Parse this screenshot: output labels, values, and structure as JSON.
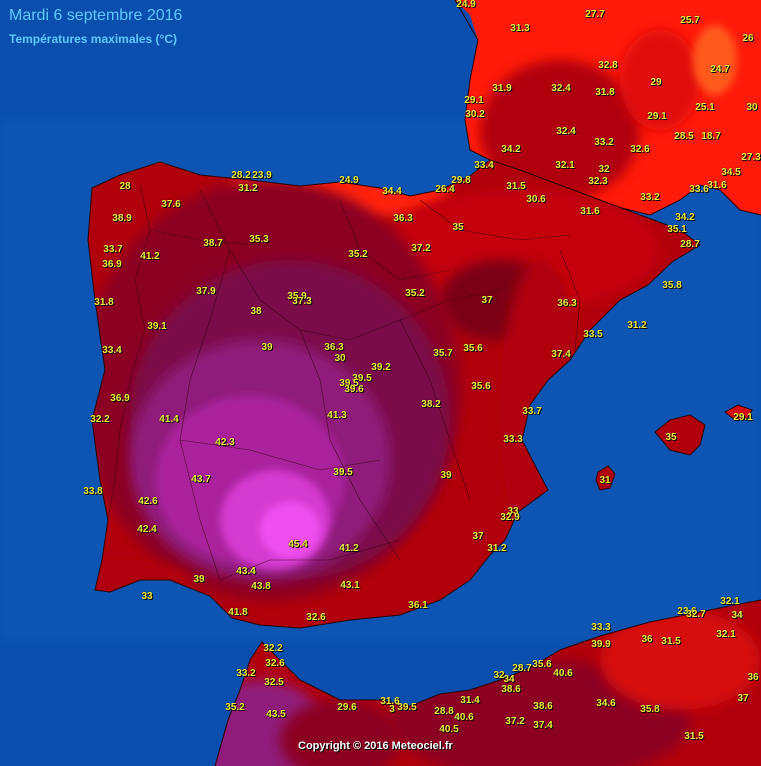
{
  "header": {
    "title": "Mardi 6 septembre 2016",
    "subtitle": "Températures maximales (°C)"
  },
  "footer": {
    "copyright": "Copyright © 2016 Meteociel.fr"
  },
  "colors": {
    "sea": "#0b4fae",
    "temp_28_30": "#ff1a0a",
    "temp_30_33": "#d60b10",
    "temp_33_36": "#b0000c",
    "temp_36_39": "#8b0020",
    "temp_39_41": "#7a0a4a",
    "temp_41_43": "#8f1a7a",
    "temp_43_45": "#c02ac0",
    "temp_45_plus": "#f050f0",
    "label": "#f2f23c"
  },
  "temperatures": [
    {
      "id": "t1",
      "value": "24.9"
    },
    {
      "id": "t2",
      "value": "31.3"
    },
    {
      "id": "t3",
      "value": "27.7"
    },
    {
      "id": "t4",
      "value": "25.7"
    },
    {
      "id": "t5",
      "value": "26"
    },
    {
      "id": "t6",
      "value": "32.8"
    },
    {
      "id": "t7",
      "value": "24.7"
    },
    {
      "id": "t8",
      "value": "29"
    },
    {
      "id": "t9",
      "value": "32.4"
    },
    {
      "id": "t10",
      "value": "31.8"
    },
    {
      "id": "t11",
      "value": "31.9"
    },
    {
      "id": "t12",
      "value": "29.1"
    },
    {
      "id": "t13",
      "value": "30.2"
    },
    {
      "id": "t14",
      "value": "25.1"
    },
    {
      "id": "t15",
      "value": "30"
    },
    {
      "id": "t16",
      "value": "29.1"
    },
    {
      "id": "t17",
      "value": "32.4"
    },
    {
      "id": "t18",
      "value": "28.5"
    },
    {
      "id": "t19",
      "value": "18.7"
    },
    {
      "id": "t20",
      "value": "33.2"
    },
    {
      "id": "t21",
      "value": "34.2"
    },
    {
      "id": "t22",
      "value": "32.6"
    },
    {
      "id": "t23",
      "value": "27.3"
    },
    {
      "id": "t24",
      "value": "33.4"
    },
    {
      "id": "t25",
      "value": "32.1"
    },
    {
      "id": "t26",
      "value": "32"
    },
    {
      "id": "t27",
      "value": "34.5"
    },
    {
      "id": "t28",
      "value": "28.2"
    },
    {
      "id": "t29",
      "value": "23.9"
    },
    {
      "id": "t30",
      "value": "24.9"
    },
    {
      "id": "t31",
      "value": "29.8"
    },
    {
      "id": "t32",
      "value": "32.3"
    },
    {
      "id": "t33",
      "value": "31.6"
    },
    {
      "id": "t34",
      "value": "33.6"
    },
    {
      "id": "t35",
      "value": "31.2"
    },
    {
      "id": "t36",
      "value": "34.4"
    },
    {
      "id": "t37",
      "value": "26.4"
    },
    {
      "id": "t38",
      "value": "31.5"
    },
    {
      "id": "t39",
      "value": "28"
    },
    {
      "id": "t40",
      "value": "30.6"
    },
    {
      "id": "t41",
      "value": "33.2"
    },
    {
      "id": "t42",
      "value": "37.6"
    },
    {
      "id": "t43",
      "value": "31.6"
    },
    {
      "id": "t44",
      "value": "38.9"
    },
    {
      "id": "t45",
      "value": "36.3"
    },
    {
      "id": "t46",
      "value": "34.2"
    },
    {
      "id": "t47",
      "value": "35"
    },
    {
      "id": "t48",
      "value": "35.1"
    },
    {
      "id": "t49",
      "value": "33.7"
    },
    {
      "id": "t50",
      "value": "38.7"
    },
    {
      "id": "t51",
      "value": "35.3"
    },
    {
      "id": "t52",
      "value": "37.2"
    },
    {
      "id": "t53",
      "value": "28.7"
    },
    {
      "id": "t54",
      "value": "41.2"
    },
    {
      "id": "t55",
      "value": "35.2"
    },
    {
      "id": "t56",
      "value": "36.9"
    },
    {
      "id": "t57",
      "value": "35.8"
    },
    {
      "id": "t58",
      "value": "37.9"
    },
    {
      "id": "t59",
      "value": "35.2"
    },
    {
      "id": "t60",
      "value": "37"
    },
    {
      "id": "t61",
      "value": "31.8"
    },
    {
      "id": "t62",
      "value": "35.9"
    },
    {
      "id": "t63",
      "value": "37.3"
    },
    {
      "id": "t64",
      "value": "36.3"
    },
    {
      "id": "t65",
      "value": "38"
    },
    {
      "id": "t66",
      "value": "39.1"
    },
    {
      "id": "t67",
      "value": "31.2"
    },
    {
      "id": "t68",
      "value": "33.5"
    },
    {
      "id": "t69",
      "value": "33.4"
    },
    {
      "id": "t70",
      "value": "39"
    },
    {
      "id": "t71",
      "value": "36.3"
    },
    {
      "id": "t72",
      "value": "35.7"
    },
    {
      "id": "t73",
      "value": "35.6"
    },
    {
      "id": "t74",
      "value": "37.4"
    },
    {
      "id": "t75",
      "value": "30"
    },
    {
      "id": "t76",
      "value": "39.2"
    },
    {
      "id": "t77",
      "value": "39.5"
    },
    {
      "id": "t78",
      "value": "39.5"
    },
    {
      "id": "t79",
      "value": "35.6"
    },
    {
      "id": "t80",
      "value": "39.6"
    },
    {
      "id": "t81",
      "value": "36.9"
    },
    {
      "id": "t82",
      "value": "38.2"
    },
    {
      "id": "t83",
      "value": "33.7"
    },
    {
      "id": "t84",
      "value": "29.1"
    },
    {
      "id": "t85",
      "value": "41.4"
    },
    {
      "id": "t86",
      "value": "41.3"
    },
    {
      "id": "t87",
      "value": "32.2"
    },
    {
      "id": "t88",
      "value": "35"
    },
    {
      "id": "t89",
      "value": "42.3"
    },
    {
      "id": "t90",
      "value": "33.3"
    },
    {
      "id": "t91",
      "value": "39.5"
    },
    {
      "id": "t92",
      "value": "39"
    },
    {
      "id": "t93",
      "value": "43.7"
    },
    {
      "id": "t94",
      "value": "31"
    },
    {
      "id": "t95",
      "value": "33.8"
    },
    {
      "id": "t96",
      "value": "42.6"
    },
    {
      "id": "t97",
      "value": "33"
    },
    {
      "id": "t98",
      "value": "32.9"
    },
    {
      "id": "t99",
      "value": "42.4"
    },
    {
      "id": "t100",
      "value": "37"
    },
    {
      "id": "t101",
      "value": "45.4"
    },
    {
      "id": "t102",
      "value": "41.2"
    },
    {
      "id": "t103",
      "value": "31.2"
    },
    {
      "id": "t104",
      "value": "43.4"
    },
    {
      "id": "t105",
      "value": "39"
    },
    {
      "id": "t106",
      "value": "43.8"
    },
    {
      "id": "t107",
      "value": "43.1"
    },
    {
      "id": "t108",
      "value": "33"
    },
    {
      "id": "t109",
      "value": "36.1"
    },
    {
      "id": "t110",
      "value": "32.1"
    },
    {
      "id": "t111",
      "value": "41.8"
    },
    {
      "id": "t112",
      "value": "32.6"
    },
    {
      "id": "t113",
      "value": "23.6"
    },
    {
      "id": "t114",
      "value": "32.7"
    },
    {
      "id": "t115",
      "value": "34"
    },
    {
      "id": "t116",
      "value": "33.3"
    },
    {
      "id": "t117",
      "value": "36"
    },
    {
      "id": "t118",
      "value": "31.5"
    },
    {
      "id": "t119",
      "value": "32.1"
    },
    {
      "id": "t120",
      "value": "32.2"
    },
    {
      "id": "t121",
      "value": "39.9"
    },
    {
      "id": "t122",
      "value": "32.6"
    },
    {
      "id": "t123",
      "value": "28.7"
    },
    {
      "id": "t124",
      "value": "35.6"
    },
    {
      "id": "t125",
      "value": "33.2"
    },
    {
      "id": "t126",
      "value": "32"
    },
    {
      "id": "t127",
      "value": "34"
    },
    {
      "id": "t128",
      "value": "40.6"
    },
    {
      "id": "t129",
      "value": "36"
    },
    {
      "id": "t130",
      "value": "32.5"
    },
    {
      "id": "t131",
      "value": "38.6"
    },
    {
      "id": "t132",
      "value": "37"
    },
    {
      "id": "t133",
      "value": "31.6"
    },
    {
      "id": "t134",
      "value": "31.4"
    },
    {
      "id": "t135",
      "value": "35.2"
    },
    {
      "id": "t136",
      "value": "29.6"
    },
    {
      "id": "t137",
      "value": "39.5"
    },
    {
      "id": "t138",
      "value": "3"
    },
    {
      "id": "t139",
      "value": "28.8"
    },
    {
      "id": "t140",
      "value": "38.6"
    },
    {
      "id": "t141",
      "value": "34.6"
    },
    {
      "id": "t142",
      "value": "35.8"
    },
    {
      "id": "t143",
      "value": "43.5"
    },
    {
      "id": "t144",
      "value": "40.6"
    },
    {
      "id": "t145",
      "value": "37.2"
    },
    {
      "id": "t146",
      "value": "40.5"
    },
    {
      "id": "t147",
      "value": "37.4"
    },
    {
      "id": "t148",
      "value": "31.5"
    }
  ]
}
